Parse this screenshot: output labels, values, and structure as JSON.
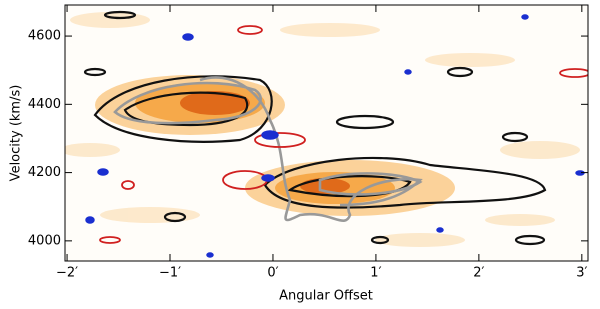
{
  "chart_data": {
    "type": "contour",
    "x_label": "Angular Offset",
    "y_label": "Velocity (km/s)",
    "xlim": [
      -2.02,
      3.06
    ],
    "ylim": [
      3941,
      4691
    ],
    "xticks": [
      {
        "value": -2,
        "label": "−2′"
      },
      {
        "value": -1,
        "label": "−1′"
      },
      {
        "value": 0,
        "label": "0′"
      },
      {
        "value": 1,
        "label": "1′"
      },
      {
        "value": 2,
        "label": "2′"
      },
      {
        "value": 3,
        "label": "3′"
      }
    ],
    "yticks": [
      4000,
      4200,
      4400,
      4600
    ]
  }
}
